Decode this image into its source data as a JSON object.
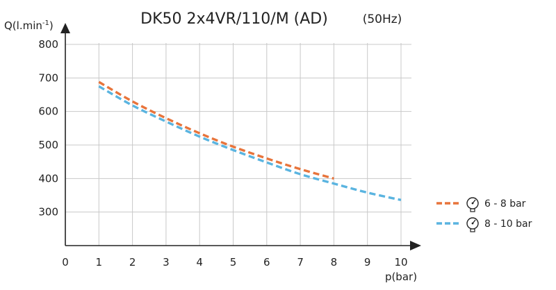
{
  "chart_data": {
    "type": "line",
    "title": "DK50 2x4VR/110/M (AD)",
    "subtitle": "(50Hz)",
    "ylabel": "Q(l.min",
    "ylabel_sup": "-1",
    "ylabel_close": ")",
    "xlabel": "p(bar)",
    "xlim": [
      0,
      10
    ],
    "ylim": [
      200,
      800
    ],
    "x_ticks": [
      "0",
      "1",
      "2",
      "3",
      "4",
      "5",
      "6",
      "7",
      "8",
      "9",
      "10"
    ],
    "y_ticks": [
      "300",
      "400",
      "500",
      "600",
      "700",
      "800"
    ],
    "grid": true,
    "legend_position": "right",
    "series": [
      {
        "name": "6 - 8 bar",
        "color": "#e8743b",
        "icon": "pressure-gauge-icon",
        "x": [
          1,
          2,
          3,
          4,
          5,
          6,
          7,
          8
        ],
        "y": [
          688,
          630,
          580,
          535,
          495,
          460,
          428,
          400
        ]
      },
      {
        "name": "8 - 10 bar",
        "color": "#5ab4e0",
        "icon": "pressure-gauge-icon",
        "x": [
          1,
          2,
          3,
          4,
          5,
          6,
          7,
          8,
          9,
          10
        ],
        "y": [
          675,
          618,
          570,
          525,
          485,
          448,
          413,
          385,
          358,
          336
        ]
      }
    ]
  }
}
